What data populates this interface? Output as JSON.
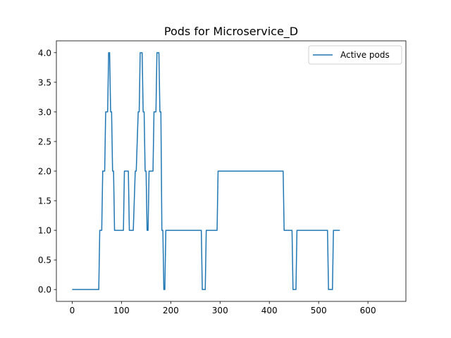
{
  "chart_data": {
    "type": "line",
    "title": "Pods for Microservice_D",
    "xlabel": "",
    "ylabel": "",
    "xlim": [
      -32,
      677
    ],
    "ylim": [
      -0.2,
      4.2
    ],
    "xticks": [
      0,
      100,
      200,
      300,
      400,
      500,
      600
    ],
    "yticks": [
      0.0,
      0.5,
      1.0,
      1.5,
      2.0,
      2.5,
      3.0,
      3.5,
      4.0
    ],
    "xtick_labels": [
      "0",
      "100",
      "200",
      "300",
      "400",
      "500",
      "600"
    ],
    "ytick_labels": [
      "0.0",
      "0.5",
      "1.0",
      "1.5",
      "2.0",
      "2.5",
      "3.0",
      "3.5",
      "4.0"
    ],
    "grid": false,
    "legend": "top-right",
    "series": [
      {
        "name": "Active pods",
        "color": "#1f77b4",
        "x": [
          0,
          54,
          56,
          60,
          62,
          66,
          68,
          72,
          74,
          76,
          78,
          80,
          82,
          84,
          86,
          104,
          106,
          114,
          116,
          124,
          128,
          130,
          134,
          136,
          138,
          142,
          144,
          146,
          148,
          150,
          152,
          154,
          156,
          164,
          166,
          170,
          172,
          176,
          178,
          180,
          182,
          184,
          186,
          188,
          190,
          192,
          194,
          196,
          198,
          262,
          264,
          270,
          272,
          294,
          296,
          428,
          430,
          446,
          448,
          454,
          456,
          518,
          520,
          528,
          530,
          543
        ],
        "y": [
          0,
          0,
          1,
          1,
          2,
          2,
          3,
          3,
          4,
          4,
          3,
          3,
          2,
          2,
          1,
          1,
          2,
          2,
          1,
          1,
          2,
          2,
          3,
          3,
          4,
          4,
          3,
          3,
          2,
          2,
          1,
          1,
          2,
          2,
          3,
          3,
          4,
          4,
          3,
          3,
          1,
          1,
          0,
          0,
          1,
          1,
          1,
          1,
          1,
          1,
          0,
          0,
          1,
          1,
          2,
          2,
          1,
          1,
          0,
          0,
          1,
          1,
          0,
          0,
          1,
          1
        ]
      }
    ]
  }
}
